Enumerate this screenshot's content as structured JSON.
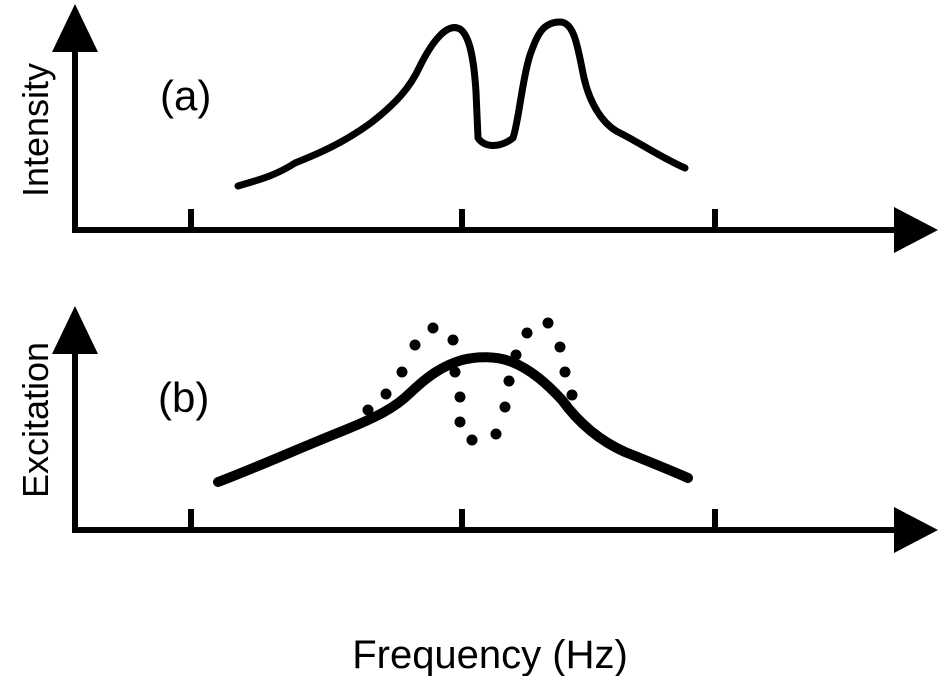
{
  "figure": {
    "panel_a": {
      "label": "(a)",
      "ylabel": "Intensity"
    },
    "panel_b": {
      "label": "(b)",
      "ylabel": "Excitation"
    },
    "xlabel": "Frequency (Hz)",
    "colors": {
      "ink": "#000000",
      "background": "#ffffff"
    }
  }
}
